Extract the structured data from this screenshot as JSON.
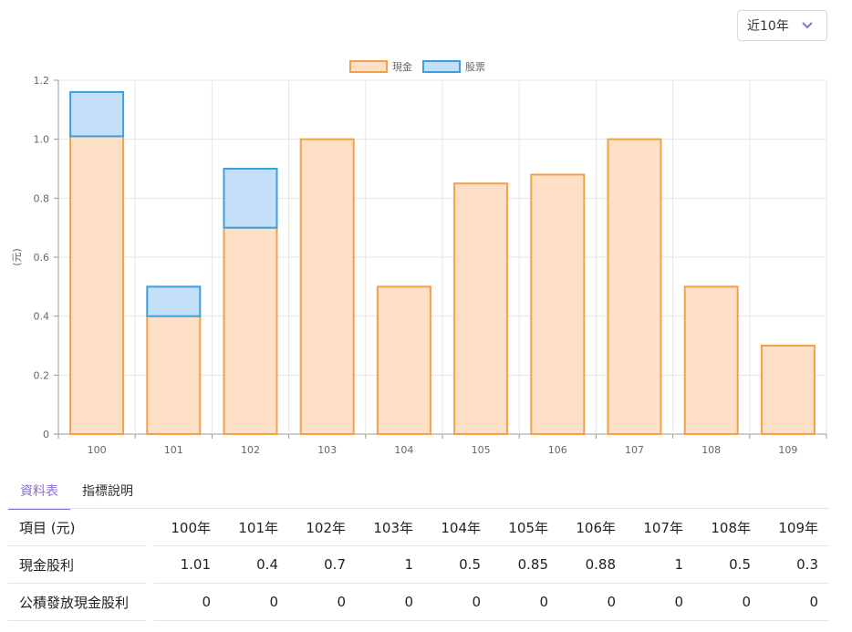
{
  "range_select": {
    "label": "近10年",
    "icon": "chevron-down-icon",
    "icon_color": "#8a6bd6"
  },
  "chart_data": {
    "type": "bar",
    "stacked": true,
    "categories": [
      "100",
      "101",
      "102",
      "103",
      "104",
      "105",
      "106",
      "107",
      "108",
      "109"
    ],
    "series": [
      {
        "name": "現金",
        "values": [
          1.01,
          0.4,
          0.7,
          1,
          0.5,
          0.85,
          0.88,
          1,
          0.5,
          0.3
        ],
        "fill": "#fde0c5",
        "stroke": "#f3a04a"
      },
      {
        "name": "股票",
        "values": [
          0.15,
          0.1,
          0.2,
          0,
          0,
          0,
          0,
          0,
          0,
          0
        ],
        "fill": "#c4e0f9",
        "stroke": "#3c9fe0"
      }
    ],
    "ylabel": "(元)",
    "ylim": [
      0,
      1.2
    ],
    "yticks": [
      "0",
      "0.2",
      "0.4",
      "0.6",
      "0.8",
      "1.0",
      "1.2"
    ],
    "grid": true,
    "legend_position": "top-center"
  },
  "tabs": [
    {
      "label": "資料表",
      "active": true
    },
    {
      "label": "指標說明",
      "active": false
    }
  ],
  "table": {
    "header": {
      "label": "項目 (元)",
      "years": [
        "100年",
        "101年",
        "102年",
        "103年",
        "104年",
        "105年",
        "106年",
        "107年",
        "108年",
        "109年"
      ]
    },
    "rows": [
      {
        "label": "現金股利",
        "values": [
          "1.01",
          "0.4",
          "0.7",
          "1",
          "0.5",
          "0.85",
          "0.88",
          "1",
          "0.5",
          "0.3"
        ]
      },
      {
        "label": "公積發放現金股利",
        "values": [
          "0",
          "0",
          "0",
          "0",
          "0",
          "0",
          "0",
          "0",
          "0",
          "0"
        ]
      }
    ]
  }
}
